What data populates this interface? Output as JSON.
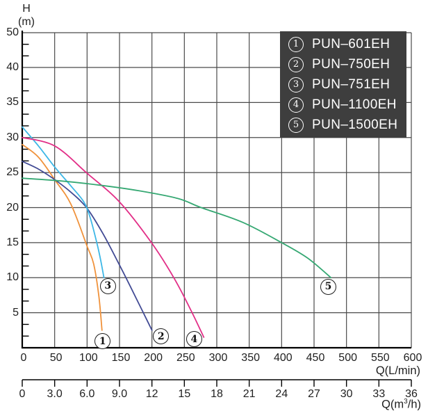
{
  "axes": {
    "y": {
      "symbol": "H",
      "unit": "(m)"
    },
    "x": {
      "title": "Q(L/min)"
    },
    "x2": {
      "title_pre": "Q(m",
      "title_sup": "3",
      "title_post": "/h)"
    }
  },
  "legend": {
    "items": [
      {
        "num": "1",
        "label": "PUN–601EH"
      },
      {
        "num": "2",
        "label": "PUN–750EH"
      },
      {
        "num": "3",
        "label": "PUN–751EH"
      },
      {
        "num": "4",
        "label": "PUN–1100EH"
      },
      {
        "num": "5",
        "label": "PUN–1500EH"
      }
    ]
  },
  "chart_data": {
    "type": "line",
    "title": "",
    "xlabel": "Q(L/min)",
    "x2label": "Q(m3/h)",
    "ylabel": "H (m)",
    "grid": true,
    "legend_position": "top-right",
    "x_range_lmin": [
      0,
      600
    ],
    "x_ticks_lmin": [
      0,
      50,
      100,
      150,
      200,
      250,
      300,
      350,
      400,
      450,
      500,
      550,
      600
    ],
    "x2_range_m3h": [
      0,
      36
    ],
    "x2_ticks_m3h": [
      "0",
      "3.0",
      "6.0",
      "9.0",
      "12",
      "15",
      "18",
      "21",
      "24",
      "27",
      "30",
      "33",
      "36"
    ],
    "y_ticks": [
      50,
      40,
      35,
      30,
      25,
      20,
      15,
      10,
      5
    ],
    "y_axis_note": "gridlines evenly spaced; top step jumps 40 to 50 (no 45 line)",
    "colors": {
      "grid": "#4A4A4A",
      "axis": "#000000",
      "legend_bg": "#3E3E3E"
    },
    "series": [
      {
        "num": "1",
        "name": "PUN-601EH",
        "color": "#F0923B",
        "points_q_h": [
          [
            0,
            29
          ],
          [
            25,
            27.2
          ],
          [
            50,
            24
          ],
          [
            75,
            20.5
          ],
          [
            100,
            14.5
          ],
          [
            110,
            12
          ],
          [
            118,
            7.5
          ],
          [
            123,
            2.5
          ]
        ],
        "marker_q_h": [
          124,
          0.9
        ]
      },
      {
        "num": "2",
        "name": "PUN-750EH",
        "color": "#414A94",
        "points_q_h": [
          [
            0,
            26.6
          ],
          [
            25,
            25.5
          ],
          [
            50,
            24
          ],
          [
            75,
            22.2
          ],
          [
            100,
            19.9
          ],
          [
            125,
            16.2
          ],
          [
            150,
            11.8
          ],
          [
            175,
            7.2
          ],
          [
            200,
            2.5
          ]
        ],
        "marker_q_h": [
          214,
          1.6
        ]
      },
      {
        "num": "3",
        "name": "PUN-751EH",
        "color": "#3DB7E6",
        "points_q_h": [
          [
            0,
            31.5
          ],
          [
            25,
            28.8
          ],
          [
            50,
            25.8
          ],
          [
            75,
            23.1
          ],
          [
            95,
            20.8
          ],
          [
            105,
            18.5
          ],
          [
            115,
            15
          ],
          [
            121,
            12.5
          ],
          [
            126,
            10
          ]
        ],
        "marker_q_h": [
          132,
          8.8
        ]
      },
      {
        "num": "4",
        "name": "PUN-1100EH",
        "color": "#E22E87",
        "points_q_h": [
          [
            0,
            30
          ],
          [
            50,
            28.8
          ],
          [
            100,
            24.9
          ],
          [
            150,
            20.8
          ],
          [
            200,
            14.9
          ],
          [
            235,
            9.8
          ],
          [
            262,
            5
          ],
          [
            280,
            1.5
          ]
        ],
        "marker_q_h": [
          265,
          1.2
        ]
      },
      {
        "num": "5",
        "name": "PUN-1500EH",
        "color": "#36A873",
        "points_q_h": [
          [
            0,
            24.2
          ],
          [
            60,
            23.8
          ],
          [
            120,
            23.2
          ],
          [
            180,
            22.4
          ],
          [
            240,
            21.3
          ],
          [
            276,
            20
          ],
          [
            340,
            17.9
          ],
          [
            400,
            15
          ],
          [
            440,
            12.8
          ],
          [
            476,
            10
          ]
        ],
        "marker_q_h": [
          472,
          8.7
        ]
      }
    ]
  }
}
